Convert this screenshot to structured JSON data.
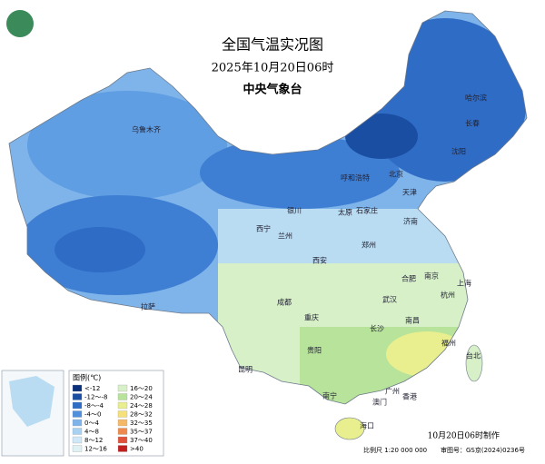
{
  "header": {
    "title": "全国气温实况图",
    "time": "2025年10月20日06时",
    "agency": "中央气象台"
  },
  "cities": [
    "乌鲁木齐",
    "哈尔滨",
    "长春",
    "沈阳",
    "呼和浩特",
    "北京",
    "天津",
    "银川",
    "太原",
    "石家庄",
    "济南",
    "西宁",
    "兰州",
    "郑州",
    "西安",
    "合肥",
    "南京",
    "上海",
    "成都",
    "武汉",
    "杭州",
    "拉萨",
    "重庆",
    "长沙",
    "南昌",
    "福州",
    "台北",
    "贵阳",
    "昆明",
    "南宁",
    "广州",
    "澳门",
    "香港",
    "海口"
  ],
  "legend": {
    "title": "图例(℃)",
    "items": [
      {
        "label": "<-12",
        "color": "#0b2f7a"
      },
      {
        "label": "-12～-8",
        "color": "#1a4ea3"
      },
      {
        "label": "-8～-4",
        "color": "#2f6cc5"
      },
      {
        "label": "-4～0",
        "color": "#4f8fdc"
      },
      {
        "label": "0～4",
        "color": "#7fb4ea"
      },
      {
        "label": "4～8",
        "color": "#a9d2f2"
      },
      {
        "label": "8～12",
        "color": "#cfe7f7"
      },
      {
        "label": "12～16",
        "color": "#dff1f2"
      },
      {
        "label": "16～20",
        "color": "#d7f0c8"
      },
      {
        "label": "20～24",
        "color": "#b8e39a"
      },
      {
        "label": "24～28",
        "color": "#e9ef8e"
      },
      {
        "label": "28～32",
        "color": "#f6e07a"
      },
      {
        "label": "32～35",
        "color": "#f5b866"
      },
      {
        "label": "35～37",
        "color": "#ee8a4d"
      },
      {
        "label": "37～40",
        "color": "#e0533a"
      },
      {
        "label": ">40",
        "color": "#c21f1f"
      }
    ]
  },
  "footer": {
    "made": "10月20日06时制作",
    "scale": "比例尺 1:20 000 000",
    "approval": "审图号：GS京(2024)0236号"
  }
}
